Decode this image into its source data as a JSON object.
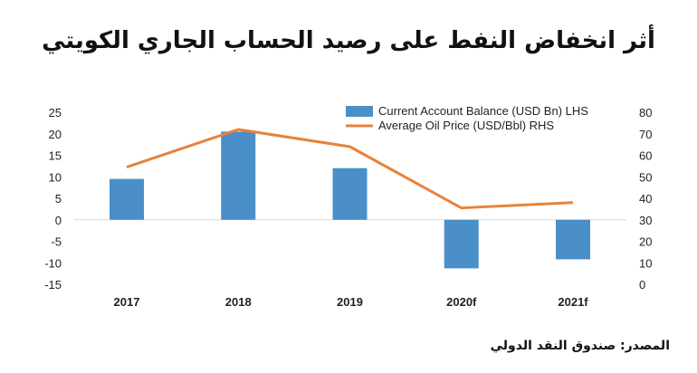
{
  "title": "أثر انخفاض النفط على رصيد الحساب الجاري الكويتي",
  "source": "المصدر: صندوق النقد الدولي",
  "colors": {
    "bar": "#4a8fc7",
    "line": "#e8823a",
    "grid": "#d9d9d9"
  },
  "chart_data": {
    "type": "bar",
    "categories": [
      "2017",
      "2018",
      "2019",
      "2020f",
      "2021f"
    ],
    "series": [
      {
        "name": "Current Account Balance (USD Bn) LHS",
        "type": "bar",
        "axis": "left",
        "values": [
          9.5,
          20.5,
          12.0,
          -11.3,
          -9.2
        ]
      },
      {
        "name": "Average Oil Price (USD/Bbl) RHS",
        "type": "line",
        "axis": "right",
        "values": [
          54.5,
          72.0,
          64.0,
          35.5,
          38.0
        ]
      }
    ],
    "y_left": {
      "min": -15,
      "max": 25,
      "step": 5
    },
    "y_right": {
      "min": 0,
      "max": 80,
      "step": 10
    },
    "legend_position": "top-center",
    "grid": false
  }
}
